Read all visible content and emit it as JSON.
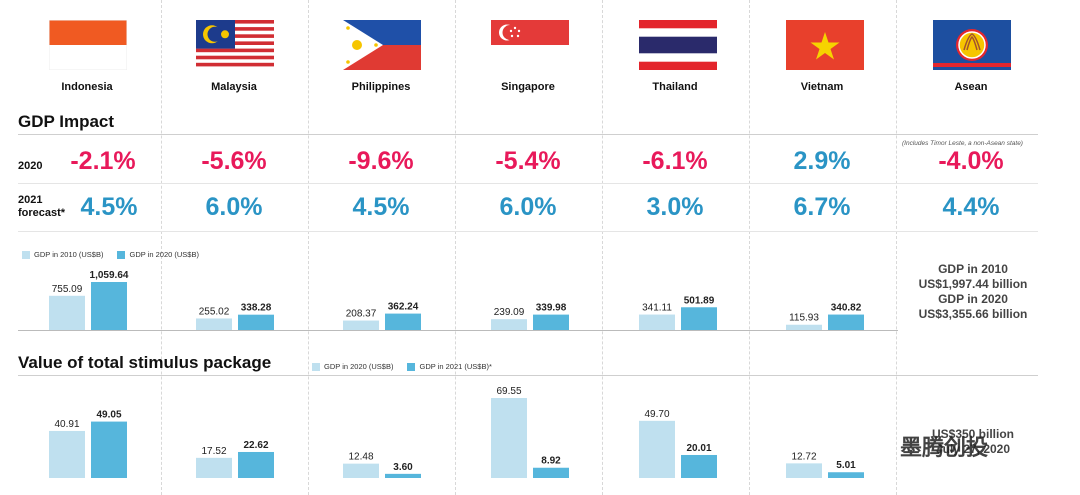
{
  "countries": [
    "Indonesia",
    "Malaysia",
    "Philippines",
    "Singapore",
    "Thailand",
    "Vietnam",
    "Asean"
  ],
  "gdp_impact": {
    "title": "GDP Impact",
    "note": "(Includes Timor Leste, a non-Asean state)",
    "row_2020_label": "2020",
    "row_2021_label_line1": "2021",
    "row_2021_label_line2": "forecast*",
    "values_2020": [
      "-2.1%",
      "-5.6%",
      "-9.6%",
      "-5.4%",
      "-6.1%",
      "2.9%",
      "-4.0%"
    ],
    "values_2021": [
      "4.5%",
      "6.0%",
      "4.5%",
      "6.0%",
      "3.0%",
      "6.7%",
      "4.4%"
    ]
  },
  "asean_gdp": {
    "line1": "GDP in 2010",
    "line2": "US$1,997.44 billion",
    "line3": "GDP in 2020",
    "line4": "US$3,355.66 billion"
  },
  "stimulus": {
    "title": "Value of total stimulus package",
    "asean_line1": "US$350 billion",
    "asean_line2": "July 27, 2020"
  },
  "watermark": "墨腾创投",
  "colors": {
    "red": "#e8195a",
    "blue": "#2a94c5",
    "bar_light": "#bfe0ef",
    "bar_dark": "#56b6dc"
  },
  "chart_data": [
    {
      "type": "bar",
      "categories": [
        "Indonesia",
        "Malaysia",
        "Philippines",
        "Singapore",
        "Thailand",
        "Vietnam"
      ],
      "series": [
        {
          "name": "GDP in 2010 (US$B)",
          "values": [
            755.09,
            255.02,
            208.37,
            239.09,
            341.11,
            115.93
          ]
        },
        {
          "name": "GDP in 2020 (US$B)",
          "values": [
            1059.64,
            338.28,
            362.24,
            339.98,
            501.89,
            340.82
          ]
        }
      ],
      "ylim": [
        0,
        1059.64
      ]
    },
    {
      "type": "bar",
      "categories": [
        "Indonesia",
        "Malaysia",
        "Philippines",
        "Singapore",
        "Thailand",
        "Vietnam"
      ],
      "series": [
        {
          "name": "GDP in 2020  (US$B)",
          "values": [
            40.91,
            17.52,
            12.48,
            69.55,
            49.7,
            12.72
          ]
        },
        {
          "name": "GDP in 2021 (US$B)*",
          "values": [
            49.05,
            22.62,
            3.6,
            8.92,
            20.01,
            5.01
          ]
        }
      ],
      "ylim": [
        0,
        69.55
      ]
    }
  ]
}
